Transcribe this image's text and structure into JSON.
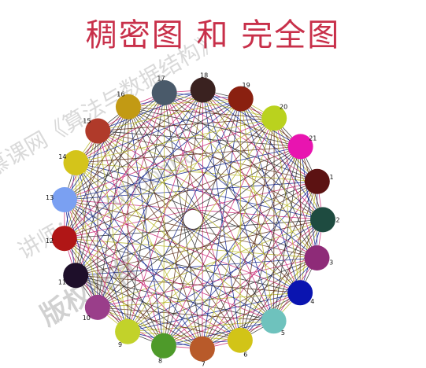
{
  "title": "稠密图 和 完全图",
  "watermark": {
    "line1": "慕课网《算法与数据结构》",
    "line2": "讲师：liuyubobobo",
    "line3": "版权所有"
  },
  "nodes": [
    {
      "id": "1",
      "color": "#5c1212"
    },
    {
      "id": "2",
      "color": "#1e4b40"
    },
    {
      "id": "3",
      "color": "#8e2b78"
    },
    {
      "id": "4",
      "color": "#0a14b0"
    },
    {
      "id": "5",
      "color": "#6ec2bd"
    },
    {
      "id": "6",
      "color": "#d2c417"
    },
    {
      "id": "7",
      "color": "#b85a2a"
    },
    {
      "id": "8",
      "color": "#4e9a2a"
    },
    {
      "id": "9",
      "color": "#c2d22a"
    },
    {
      "id": "10",
      "color": "#9a3e8a"
    },
    {
      "id": "11",
      "color": "#1e0f2a"
    },
    {
      "id": "12",
      "color": "#b01616"
    },
    {
      "id": "13",
      "color": "#7aa0f2"
    },
    {
      "id": "14",
      "color": "#d4c41a"
    },
    {
      "id": "15",
      "color": "#b03a2a"
    },
    {
      "id": "16",
      "color": "#c29a14"
    },
    {
      "id": "17",
      "color": "#4a5a6a"
    },
    {
      "id": "18",
      "color": "#3a2220"
    },
    {
      "id": "19",
      "color": "#8a2010"
    },
    {
      "id": "20",
      "color": "#bad21e"
    },
    {
      "id": "21",
      "color": "#e814b0"
    }
  ],
  "edge_colors": [
    "#c81e6e",
    "#0a1e8c",
    "#b4b41e",
    "#5a2a14",
    "#2a2a2a"
  ]
}
